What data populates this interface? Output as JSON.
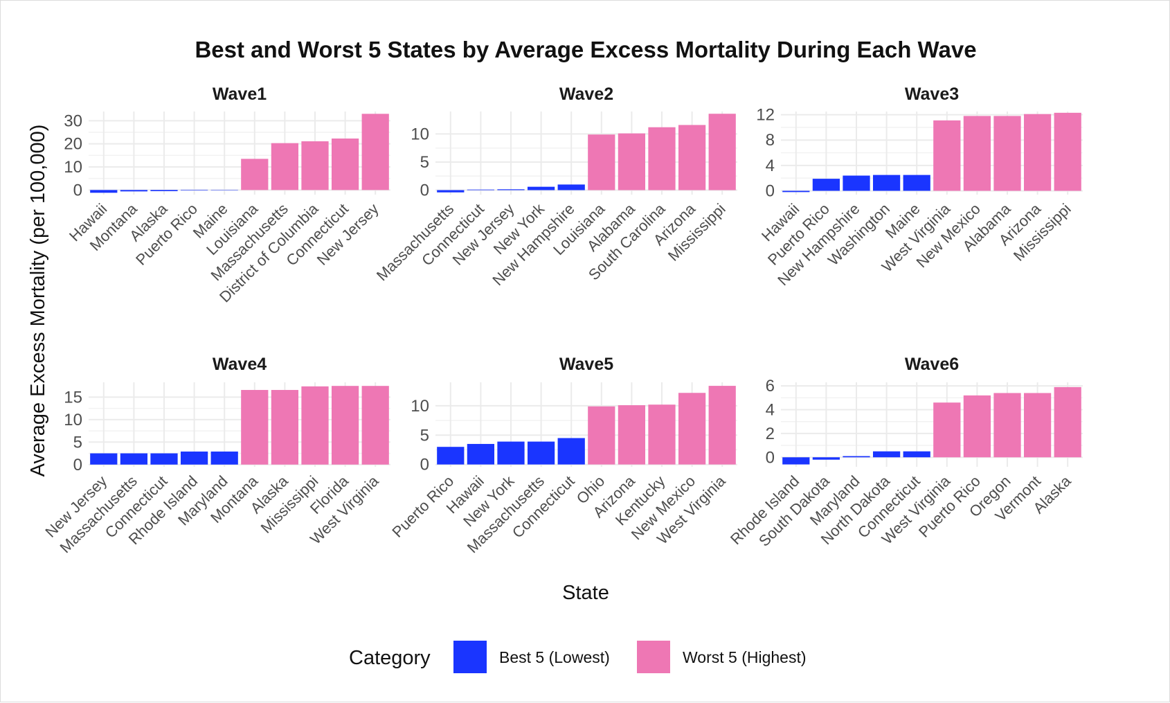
{
  "colors": {
    "best": "#1a35ff",
    "worst": "#ee77b4"
  },
  "chart_data": {
    "type": "bar",
    "title": "Best and Worst 5 States by Average Excess Mortality During Each Wave",
    "xlabel": "State",
    "ylabel": "Average Excess Mortality (per 100,000)",
    "legend": {
      "title": "Category",
      "position": "bottom",
      "entries": [
        {
          "key": "best",
          "label": "Best 5 (Lowest)"
        },
        {
          "key": "worst",
          "label": "Worst 5 (Highest)"
        }
      ]
    },
    "grid": true,
    "panels": [
      {
        "title": "Wave1",
        "ylim": [
          -2,
          34
        ],
        "yticks": [
          0,
          10,
          20,
          30
        ],
        "categories": [
          "Hawaii",
          "Montana",
          "Alaska",
          "Puerto Rico",
          "Maine",
          "Louisiana",
          "Massachusetts",
          "District of Columbia",
          "Connecticut",
          "New Jersey"
        ],
        "values": [
          -1.2,
          -0.6,
          -0.5,
          -0.2,
          0.1,
          13.5,
          20.3,
          21.1,
          22.3,
          33.0
        ],
        "groups": [
          "best",
          "best",
          "best",
          "best",
          "best",
          "worst",
          "worst",
          "worst",
          "worst",
          "worst"
        ]
      },
      {
        "title": "Wave2",
        "ylim": [
          -0.8,
          14
        ],
        "yticks": [
          0,
          5,
          10
        ],
        "categories": [
          "Massachusetts",
          "Connecticut",
          "New Jersey",
          "New York",
          "New Hampshire",
          "Louisiana",
          "Alabama",
          "South Carolina",
          "Arizona",
          "Mississippi"
        ],
        "values": [
          -0.4,
          0.1,
          0.15,
          0.6,
          1.0,
          9.9,
          10.1,
          11.2,
          11.6,
          13.6
        ],
        "groups": [
          "best",
          "best",
          "best",
          "best",
          "best",
          "worst",
          "worst",
          "worst",
          "worst",
          "worst"
        ]
      },
      {
        "title": "Wave3",
        "ylim": [
          -0.6,
          12.5
        ],
        "yticks": [
          0,
          4,
          8,
          12
        ],
        "categories": [
          "Hawaii",
          "Puerto Rico",
          "New Hampshire",
          "Washington",
          "Maine",
          "West Virginia",
          "New Mexico",
          "Alabama",
          "Arizona",
          "Mississippi"
        ],
        "values": [
          -0.2,
          1.9,
          2.4,
          2.5,
          2.5,
          11.1,
          11.8,
          11.8,
          12.1,
          12.3
        ],
        "groups": [
          "best",
          "best",
          "best",
          "best",
          "best",
          "worst",
          "worst",
          "worst",
          "worst",
          "worst"
        ]
      },
      {
        "title": "Wave4",
        "ylim": [
          -0.5,
          18.3
        ],
        "yticks": [
          0,
          5,
          10,
          15
        ],
        "categories": [
          "New Jersey",
          "Massachusetts",
          "Connecticut",
          "Rhode Island",
          "Maryland",
          "Montana",
          "Alaska",
          "Mississippi",
          "Florida",
          "West Virginia"
        ],
        "values": [
          2.5,
          2.5,
          2.5,
          2.9,
          2.9,
          16.6,
          16.6,
          17.4,
          17.5,
          17.5
        ],
        "groups": [
          "best",
          "best",
          "best",
          "best",
          "best",
          "worst",
          "worst",
          "worst",
          "worst",
          "worst"
        ]
      },
      {
        "title": "Wave5",
        "ylim": [
          -0.4,
          14
        ],
        "yticks": [
          0,
          5,
          10
        ],
        "categories": [
          "Puerto Rico",
          "Hawaii",
          "New York",
          "Massachusetts",
          "Connecticut",
          "Ohio",
          "Arizona",
          "Kentucky",
          "New Mexico",
          "West Virginia"
        ],
        "values": [
          3.0,
          3.5,
          3.9,
          3.9,
          4.5,
          9.9,
          10.1,
          10.2,
          12.2,
          13.4
        ],
        "groups": [
          "best",
          "best",
          "best",
          "best",
          "best",
          "worst",
          "worst",
          "worst",
          "worst",
          "worst"
        ]
      },
      {
        "title": "Wave6",
        "ylim": [
          -0.8,
          6.3
        ],
        "yticks": [
          0,
          2,
          4,
          6
        ],
        "categories": [
          "Rhode Island",
          "South Dakota",
          "Maryland",
          "North Dakota",
          "Connecticut",
          "West Virginia",
          "Puerto Rico",
          "Oregon",
          "Vermont",
          "Alaska"
        ],
        "values": [
          -0.6,
          -0.2,
          0.1,
          0.5,
          0.5,
          4.6,
          5.2,
          5.4,
          5.4,
          5.9
        ],
        "groups": [
          "best",
          "best",
          "best",
          "best",
          "best",
          "worst",
          "worst",
          "worst",
          "worst",
          "worst"
        ]
      }
    ]
  }
}
